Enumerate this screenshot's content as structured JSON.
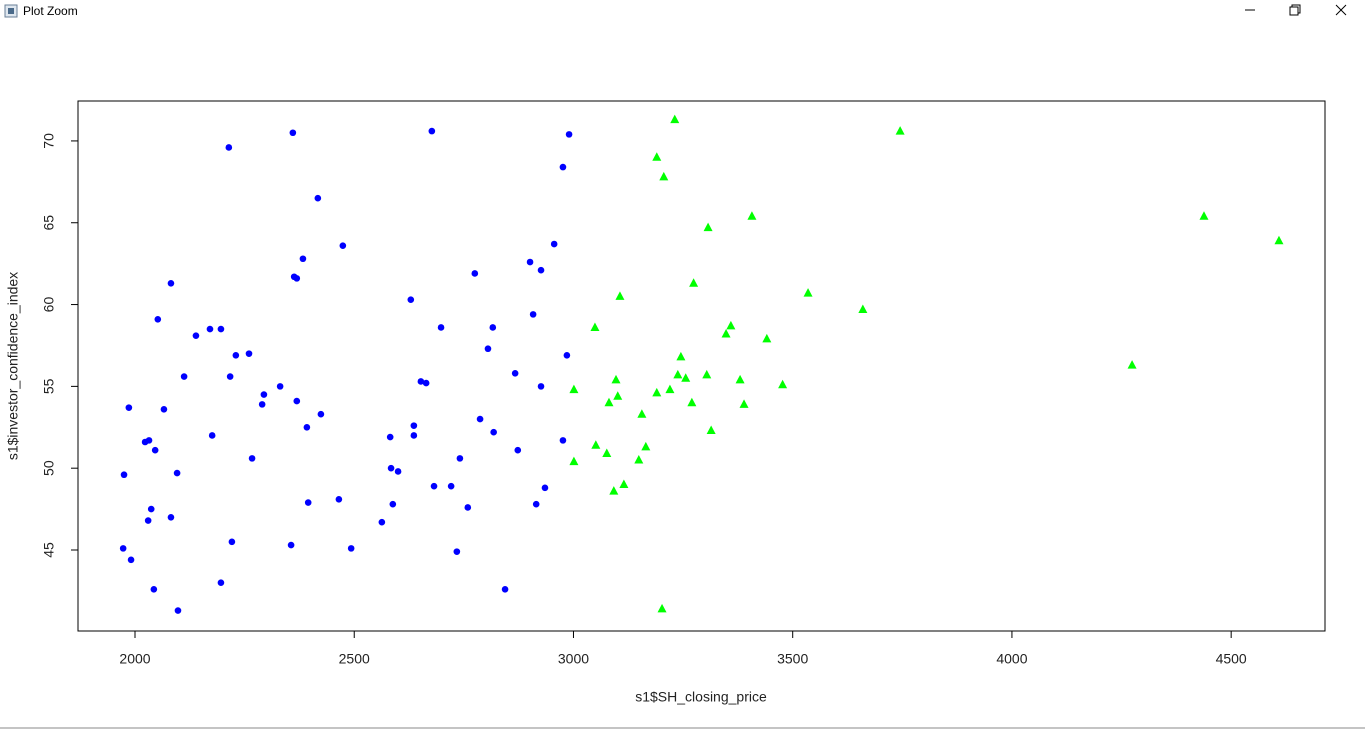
{
  "window": {
    "title": "Plot Zoom"
  },
  "chart_data": {
    "type": "scatter",
    "x_label": "s1$SH_closing_price",
    "y_label": "s1$investor_confidence_index",
    "xlim": [
      1870,
      4714
    ],
    "ylim": [
      40.05,
      72.44
    ],
    "xticks": [
      2000,
      2500,
      3000,
      3500,
      4000,
      4500
    ],
    "yticks": [
      45,
      50,
      55,
      60,
      65,
      70
    ],
    "grid": false,
    "series": [
      {
        "color": "#0000ff",
        "marker": "circle",
        "x": [
          1973,
          1991,
          1975,
          1986,
          2023,
          2032,
          2046,
          2030,
          2037,
          2043,
          2052,
          2066,
          2082,
          2082,
          2096,
          2098,
          2112,
          2139,
          2171,
          2176,
          2196,
          2196,
          2214,
          2217,
          2221,
          2230,
          2260,
          2267,
          2290,
          2294,
          2331,
          2356,
          2360,
          2363,
          2369,
          2369,
          2383,
          2392,
          2395,
          2417,
          2424,
          2465,
          2474,
          2493,
          2563,
          2582,
          2584,
          2588,
          2600,
          2629,
          2636,
          2636,
          2652,
          2664,
          2677,
          2682,
          2698,
          2721,
          2734,
          2741,
          2759,
          2775,
          2787,
          2805,
          2816,
          2818,
          2844,
          2867,
          2873,
          2901,
          2908,
          2915,
          2926,
          2926,
          2935,
          2956,
          2976,
          2976,
          2985,
          2990
        ],
        "values": [
          45.1,
          44.4,
          49.6,
          53.7,
          51.6,
          51.7,
          51.1,
          46.8,
          47.5,
          42.6,
          59.1,
          53.6,
          61.3,
          47.0,
          49.7,
          41.3,
          55.6,
          58.1,
          58.5,
          52.0,
          58.5,
          43.0,
          69.6,
          55.6,
          45.5,
          56.9,
          57.0,
          50.6,
          53.9,
          54.5,
          55.0,
          45.3,
          70.5,
          61.7,
          61.6,
          54.1,
          62.8,
          52.5,
          47.9,
          66.5,
          53.3,
          48.1,
          63.6,
          45.1,
          46.7,
          51.9,
          50.0,
          47.8,
          49.8,
          60.3,
          52.6,
          52.0,
          55.3,
          55.2,
          70.6,
          48.9,
          58.6,
          48.9,
          44.9,
          50.6,
          47.6,
          61.9,
          53.0,
          57.3,
          58.6,
          52.2,
          42.6,
          55.8,
          51.1,
          62.6,
          59.4,
          47.8,
          62.1,
          55.0,
          48.8,
          63.7,
          68.4,
          51.7,
          56.9,
          70.4
        ]
      },
      {
        "color": "#00ff00",
        "marker": "triangle",
        "x": [
          3001,
          3001,
          3049,
          3051,
          3076,
          3081,
          3092,
          3097,
          3101,
          3106,
          3115,
          3149,
          3156,
          3165,
          3190,
          3190,
          3202,
          3206,
          3220,
          3231,
          3238,
          3245,
          3256,
          3270,
          3274,
          3304,
          3307,
          3314,
          3348,
          3359,
          3380,
          3389,
          3407,
          3441,
          3477,
          3535,
          3660,
          3745,
          4274,
          4438,
          4609
        ],
        "values": [
          54.8,
          50.4,
          58.6,
          51.4,
          50.9,
          54.0,
          48.6,
          55.4,
          54.4,
          60.5,
          49.0,
          50.5,
          53.3,
          51.3,
          69.0,
          54.6,
          41.4,
          67.8,
          54.8,
          71.3,
          55.7,
          56.8,
          55.5,
          54.0,
          61.3,
          55.7,
          64.7,
          52.3,
          58.2,
          58.7,
          55.4,
          53.9,
          65.4,
          57.9,
          55.1,
          60.7,
          59.7,
          70.6,
          56.3,
          65.4,
          63.9
        ]
      }
    ]
  }
}
